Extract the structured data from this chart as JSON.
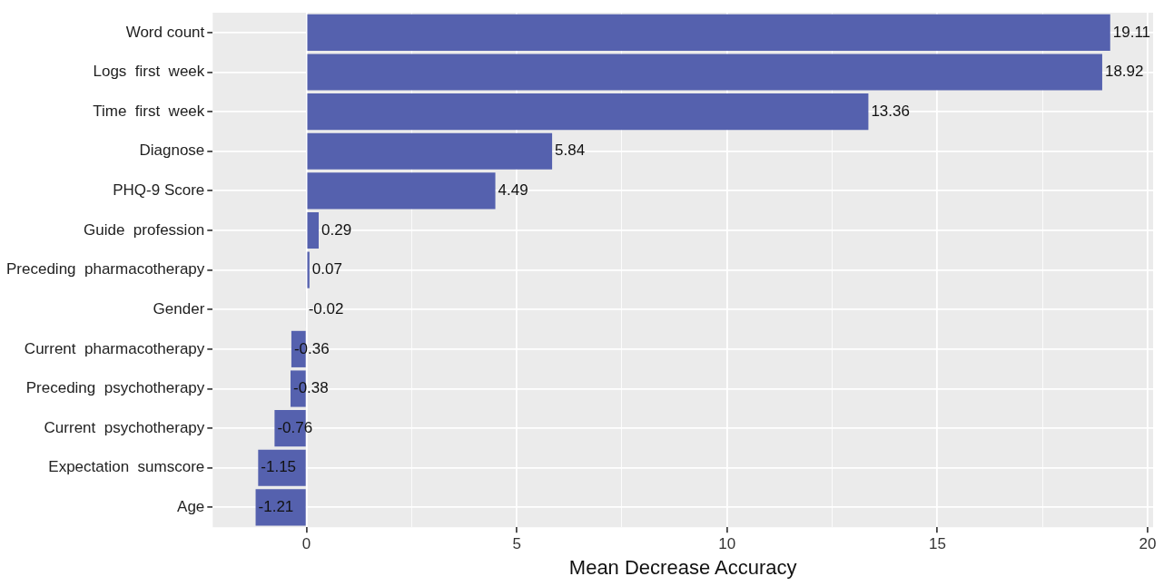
{
  "chart_data": {
    "type": "bar",
    "orientation": "horizontal",
    "xlabel": "Mean Decrease Accuracy",
    "categories": [
      "Word count",
      "Logs  first  week",
      "Time  first  week",
      "Diagnose",
      "PHQ-9 Score",
      "Guide  profession",
      "Preceding  pharmacotherapy",
      "Gender",
      "Current  pharmacotherapy",
      "Preceding  psychotherapy",
      "Current  psychotherapy",
      "Expectation  sumscore",
      "Age"
    ],
    "values": [
      19.11,
      18.92,
      13.36,
      5.84,
      4.49,
      0.29,
      0.07,
      -0.02,
      -0.36,
      -0.38,
      -0.76,
      -1.15,
      -1.21
    ],
    "color": "#5561ae",
    "xlim": [
      -2.23,
      20.13
    ],
    "xticks": [
      0,
      {
        "value": 2.5,
        "label": null
      },
      5,
      {
        "value": 7.5,
        "label": null
      },
      10,
      {
        "value": 12.5,
        "label": null
      },
      15,
      {
        "value": 17.5,
        "label": null
      },
      20
    ],
    "grid": true,
    "data_labels": true,
    "legend": false
  }
}
